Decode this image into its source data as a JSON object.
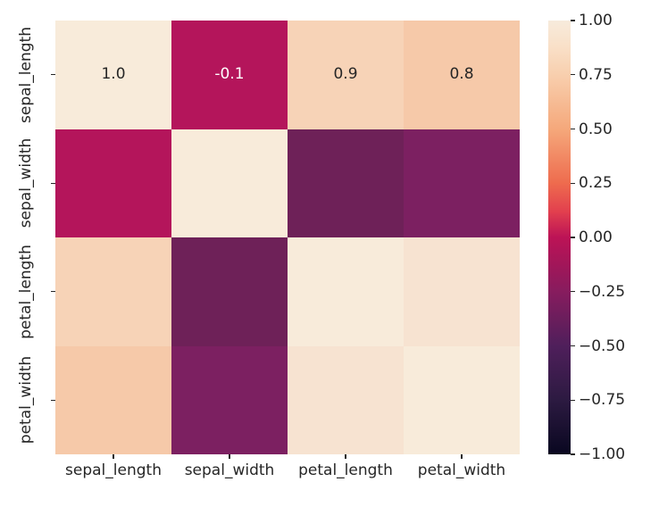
{
  "figure": {
    "background_color": "#ffffff",
    "text_color": "#262626"
  },
  "chart_data": {
    "type": "heatmap",
    "title": "",
    "xlabel": "",
    "ylabel": "",
    "x_labels": [
      "sepal_length",
      "sepal_width",
      "petal_length",
      "petal_width"
    ],
    "y_labels": [
      "sepal_length",
      "sepal_width",
      "petal_length",
      "petal_width"
    ],
    "values": [
      [
        1.0,
        -0.1,
        0.9,
        0.8
      ],
      [
        -0.1,
        1.0,
        -0.4,
        -0.35
      ],
      [
        0.9,
        -0.4,
        1.0,
        0.95
      ],
      [
        0.8,
        -0.35,
        0.95,
        1.0
      ]
    ],
    "annotations": [
      [
        "1.0",
        "-0.1",
        "0.9",
        "0.8"
      ],
      [
        "",
        "",
        "",
        ""
      ],
      [
        "",
        "",
        "",
        ""
      ],
      [
        "",
        "",
        "",
        ""
      ]
    ],
    "annotation_text_colors": [
      [
        "#262626",
        "#ffffff",
        "#262626",
        "#262626"
      ],
      [
        "",
        "",
        "",
        ""
      ],
      [
        "",
        "",
        "",
        ""
      ],
      [
        "",
        "",
        "",
        ""
      ]
    ],
    "cell_colors": [
      [
        "#f8ebda",
        "#b4155b",
        "#f7d3b7",
        "#f6c9a9"
      ],
      [
        "#b4155b",
        "#f8ebda",
        "#6e2158",
        "#7c2061"
      ],
      [
        "#f7d3b7",
        "#6e2158",
        "#f8ebda",
        "#f7e3d1"
      ],
      [
        "#f6c9a9",
        "#7c2061",
        "#f7e3d1",
        "#f8ebda"
      ]
    ],
    "grid": false,
    "colorbar": {
      "position": "right",
      "range": [
        -1.0,
        1.0
      ],
      "tick_labels": [
        "1.00",
        "0.75",
        "0.50",
        "0.25",
        "0.00",
        "−0.25",
        "−0.50",
        "−0.75",
        "−1.00"
      ],
      "tick_values": [
        1.0,
        0.75,
        0.5,
        0.25,
        0.0,
        -0.25,
        -0.5,
        -0.75,
        -1.0
      ],
      "colormap_name": "rocket",
      "gradient_stops": [
        {
          "pos": 0,
          "color": "#f7ebdc"
        },
        {
          "pos": 6,
          "color": "#f9e0c8"
        },
        {
          "pos": 12.5,
          "color": "#f8cfae"
        },
        {
          "pos": 25,
          "color": "#f5a87b"
        },
        {
          "pos": 37.5,
          "color": "#ee6b4e"
        },
        {
          "pos": 44,
          "color": "#e2404e"
        },
        {
          "pos": 50,
          "color": "#bc1356"
        },
        {
          "pos": 56,
          "color": "#a31659"
        },
        {
          "pos": 62.5,
          "color": "#871c5e"
        },
        {
          "pos": 75,
          "color": "#4f1f5b"
        },
        {
          "pos": 87.5,
          "color": "#2c1a41"
        },
        {
          "pos": 100,
          "color": "#090720"
        }
      ]
    }
  }
}
